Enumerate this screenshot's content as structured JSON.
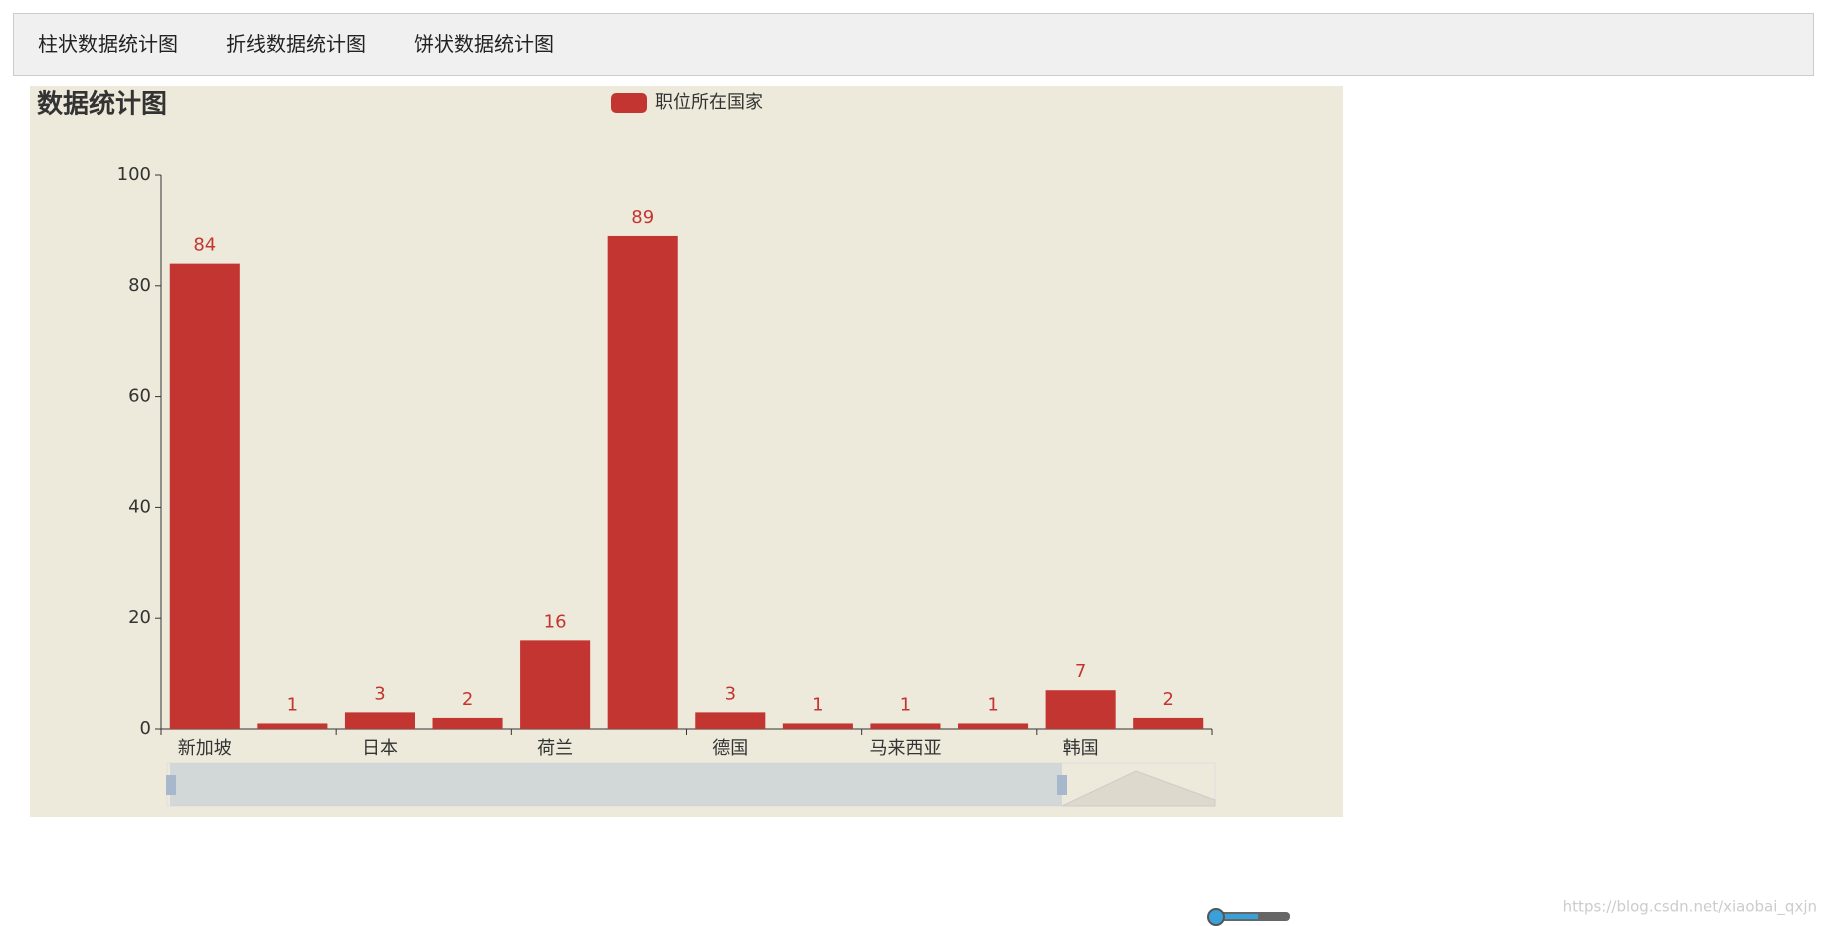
{
  "tabs": [
    "柱状数据统计图",
    "折线数据统计图",
    "饼状数据统计图"
  ],
  "watermark": "https://blog.csdn.net/xiaobai_qxjn",
  "chart_data": {
    "type": "bar",
    "title": "数据统计图",
    "categories": [
      "新加坡",
      null,
      "日本",
      null,
      "荷兰",
      null,
      "德国",
      null,
      "马来西亚",
      null,
      "韩国",
      null
    ],
    "series": [
      {
        "name": "职位所在国家",
        "color": "#c23531",
        "values": [
          84,
          1,
          3,
          2,
          16,
          89,
          3,
          1,
          1,
          1,
          7,
          2
        ]
      }
    ],
    "ylim": [
      0,
      100
    ],
    "yticks": [
      0,
      20,
      40,
      60,
      80,
      100
    ],
    "grid": false,
    "legend": "top"
  }
}
